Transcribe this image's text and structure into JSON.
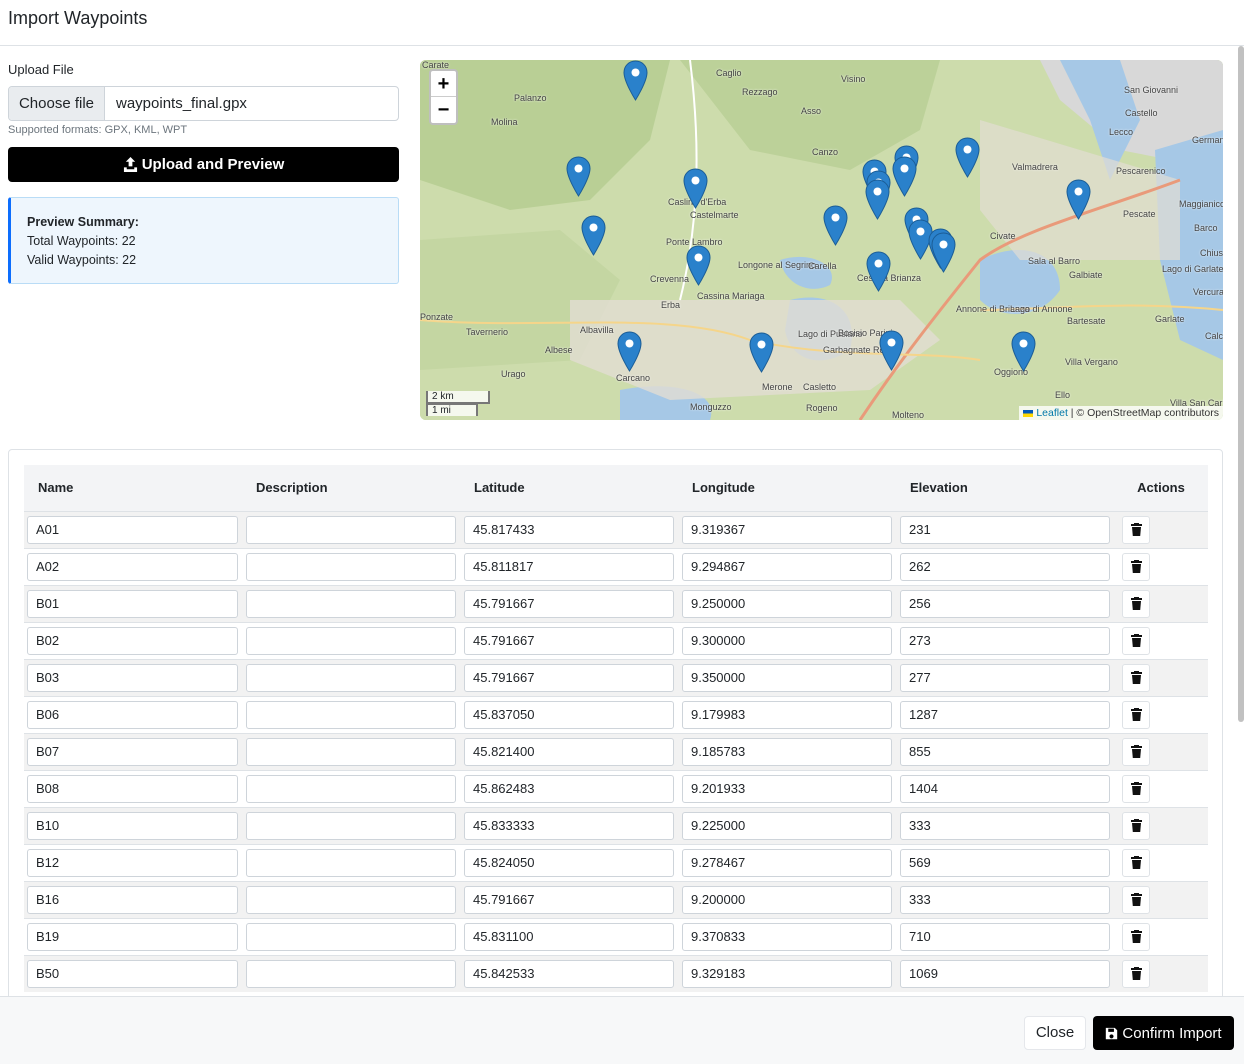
{
  "modal": {
    "title": "Import Waypoints",
    "close_label": "Close",
    "confirm_label": "Confirm Import"
  },
  "upload": {
    "label": "Upload File",
    "choose_label": "Choose file",
    "file_name": "waypoints_final.gpx",
    "formats_hint": "Supported formats: GPX, KML, WPT",
    "button_label": "Upload and Preview"
  },
  "summary": {
    "title": "Preview Summary:",
    "total": "Total Waypoints: 22",
    "valid": "Valid Waypoints: 22"
  },
  "map": {
    "zoom_in": "+",
    "zoom_out": "−",
    "scale_km": "2 km",
    "scale_mi": "1 mi",
    "attribution_link": "Leaflet",
    "attribution_rest": " | © OpenStreetMap contributors",
    "places": [
      "Carate",
      "Caglio",
      "Visino",
      "Rezzago",
      "Palanzo",
      "Molina",
      "Asso",
      "Canzo",
      "Caslino d'Erba",
      "Castelmarte",
      "Ponte Lambro",
      "Longone al Segrino",
      "Crevenna",
      "Cassina Mariaga",
      "Erba",
      "Carella",
      "Cesana Brianza",
      "Valmadrera",
      "Lecco",
      "San Giovanni",
      "Castello",
      "Germanedo",
      "Pescarenico",
      "Pescate",
      "Maggianico",
      "Civate",
      "Sala al Barro",
      "Galbiate",
      "Barco",
      "Chiuso",
      "Lago di Garlate",
      "Vercurago",
      "Tavernerio",
      "Albese",
      "Albavilla",
      "Ponzate",
      "Urago",
      "Carcano",
      "Annone di Brianza",
      "Lago di Annone",
      "Bartesate",
      "Garlate",
      "Lago di Pusiano",
      "Bosisio Parini",
      "Garbagnate Rota",
      "Villa Vergano",
      "Oggiono",
      "Merone",
      "Casletto",
      "Monguzzo",
      "Rogeno",
      "Molteno",
      "Ello",
      "Villa San Carlo",
      "Calco"
    ]
  },
  "table": {
    "headers": [
      "Name",
      "Description",
      "Latitude",
      "Longitude",
      "Elevation",
      "Actions"
    ],
    "rows": [
      {
        "name": "A01",
        "description": "",
        "lat": "45.817433",
        "lon": "9.319367",
        "ele": "231"
      },
      {
        "name": "A02",
        "description": "",
        "lat": "45.811817",
        "lon": "9.294867",
        "ele": "262"
      },
      {
        "name": "B01",
        "description": "",
        "lat": "45.791667",
        "lon": "9.250000",
        "ele": "256"
      },
      {
        "name": "B02",
        "description": "",
        "lat": "45.791667",
        "lon": "9.300000",
        "ele": "273"
      },
      {
        "name": "B03",
        "description": "",
        "lat": "45.791667",
        "lon": "9.350000",
        "ele": "277"
      },
      {
        "name": "B06",
        "description": "",
        "lat": "45.837050",
        "lon": "9.179983",
        "ele": "1287"
      },
      {
        "name": "B07",
        "description": "",
        "lat": "45.821400",
        "lon": "9.185783",
        "ele": "855"
      },
      {
        "name": "B08",
        "description": "",
        "lat": "45.862483",
        "lon": "9.201933",
        "ele": "1404"
      },
      {
        "name": "B10",
        "description": "",
        "lat": "45.833333",
        "lon": "9.225000",
        "ele": "333"
      },
      {
        "name": "B12",
        "description": "",
        "lat": "45.824050",
        "lon": "9.278467",
        "ele": "569"
      },
      {
        "name": "B16",
        "description": "",
        "lat": "45.791667",
        "lon": "9.200000",
        "ele": "333"
      },
      {
        "name": "B19",
        "description": "",
        "lat": "45.831100",
        "lon": "9.370833",
        "ele": "710"
      },
      {
        "name": "B50",
        "description": "",
        "lat": "45.842533",
        "lon": "9.329183",
        "ele": "1069"
      }
    ]
  },
  "colors": {
    "primary_dark": "#000000",
    "info_border": "#0d6efd",
    "marker_blue": "#2a81cb"
  }
}
